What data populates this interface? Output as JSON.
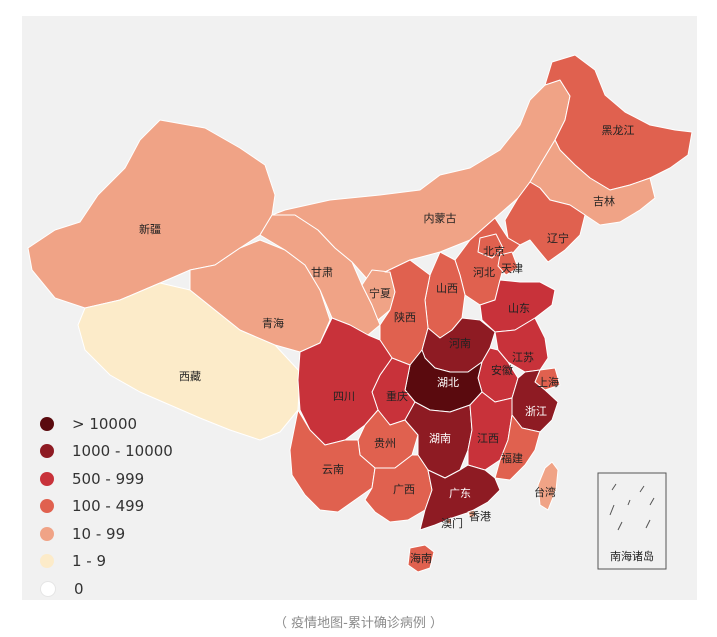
{
  "colors": {
    "gt_10000": "#5a0a0e",
    "c1000_10000": "#8e1b23",
    "c500_999": "#c8323a",
    "c100_499": "#e0614f",
    "c10_99": "#f0a386",
    "c1_9": "#fcebc9",
    "c0": "#ffffff"
  },
  "legend": [
    {
      "label": "> 10000",
      "color": "#5a0a0e"
    },
    {
      "label": "1000 - 10000",
      "color": "#8e1b23"
    },
    {
      "label": "500 - 999",
      "color": "#c8323a"
    },
    {
      "label": "100 - 499",
      "color": "#e0614f"
    },
    {
      "label": "10 - 99",
      "color": "#f0a386"
    },
    {
      "label": "1 - 9",
      "color": "#fcebc9"
    },
    {
      "label": "0",
      "color": "#ffffff"
    }
  ],
  "provinces": {
    "heilongjiang": {
      "name": "黑龙江",
      "category": "100 - 499"
    },
    "jilin": {
      "name": "吉林",
      "category": "10 - 99"
    },
    "liaoning": {
      "name": "辽宁",
      "category": "100 - 499"
    },
    "neimenggu": {
      "name": "内蒙古",
      "category": "10 - 99"
    },
    "xinjiang": {
      "name": "新疆",
      "category": "10 - 99"
    },
    "gansu": {
      "name": "甘肃",
      "category": "10 - 99"
    },
    "ningxia": {
      "name": "宁夏",
      "category": "10 - 99"
    },
    "qinghai": {
      "name": "青海",
      "category": "10 - 99"
    },
    "xizang": {
      "name": "西藏",
      "category": "1 - 9"
    },
    "beijing": {
      "name": "北京",
      "category": "100 - 499"
    },
    "tianjin": {
      "name": "天津",
      "category": "100 - 499"
    },
    "hebei": {
      "name": "河北",
      "category": "100 - 499"
    },
    "shanxi": {
      "name": "山西",
      "category": "100 - 499"
    },
    "shaanxi": {
      "name": "陕西",
      "category": "100 - 499"
    },
    "shandong": {
      "name": "山东",
      "category": "500 - 999"
    },
    "henan": {
      "name": "河南",
      "category": "1000 - 10000"
    },
    "jiangsu": {
      "name": "江苏",
      "category": "500 - 999"
    },
    "anhui": {
      "name": "安徽",
      "category": "500 - 999"
    },
    "shanghai": {
      "name": "上海",
      "category": "100 - 499"
    },
    "zhejiang": {
      "name": "浙江",
      "category": "1000 - 10000"
    },
    "hubei": {
      "name": "湖北",
      "category": "> 10000"
    },
    "sichuan": {
      "name": "四川",
      "category": "500 - 999"
    },
    "chongqing": {
      "name": "重庆",
      "category": "500 - 999"
    },
    "guizhou": {
      "name": "贵州",
      "category": "100 - 499"
    },
    "hunan": {
      "name": "湖南",
      "category": "1000 - 10000"
    },
    "jiangxi": {
      "name": "江西",
      "category": "500 - 999"
    },
    "fujian": {
      "name": "福建",
      "category": "100 - 499"
    },
    "yunnan": {
      "name": "云南",
      "category": "100 - 499"
    },
    "guangxi": {
      "name": "广西",
      "category": "100 - 499"
    },
    "guangdong": {
      "name": "广东",
      "category": "1000 - 10000"
    },
    "hongkong": {
      "name": "香港",
      "category": "10 - 99"
    },
    "macau": {
      "name": "澳门",
      "category": "10 - 99"
    },
    "taiwan": {
      "name": "台湾",
      "category": "10 - 99"
    },
    "hainan": {
      "name": "海南",
      "category": "100 - 499"
    }
  },
  "inset": {
    "label": "南海诸岛"
  },
  "caption": "（ 疫情地图-累计确诊病例 ）"
}
